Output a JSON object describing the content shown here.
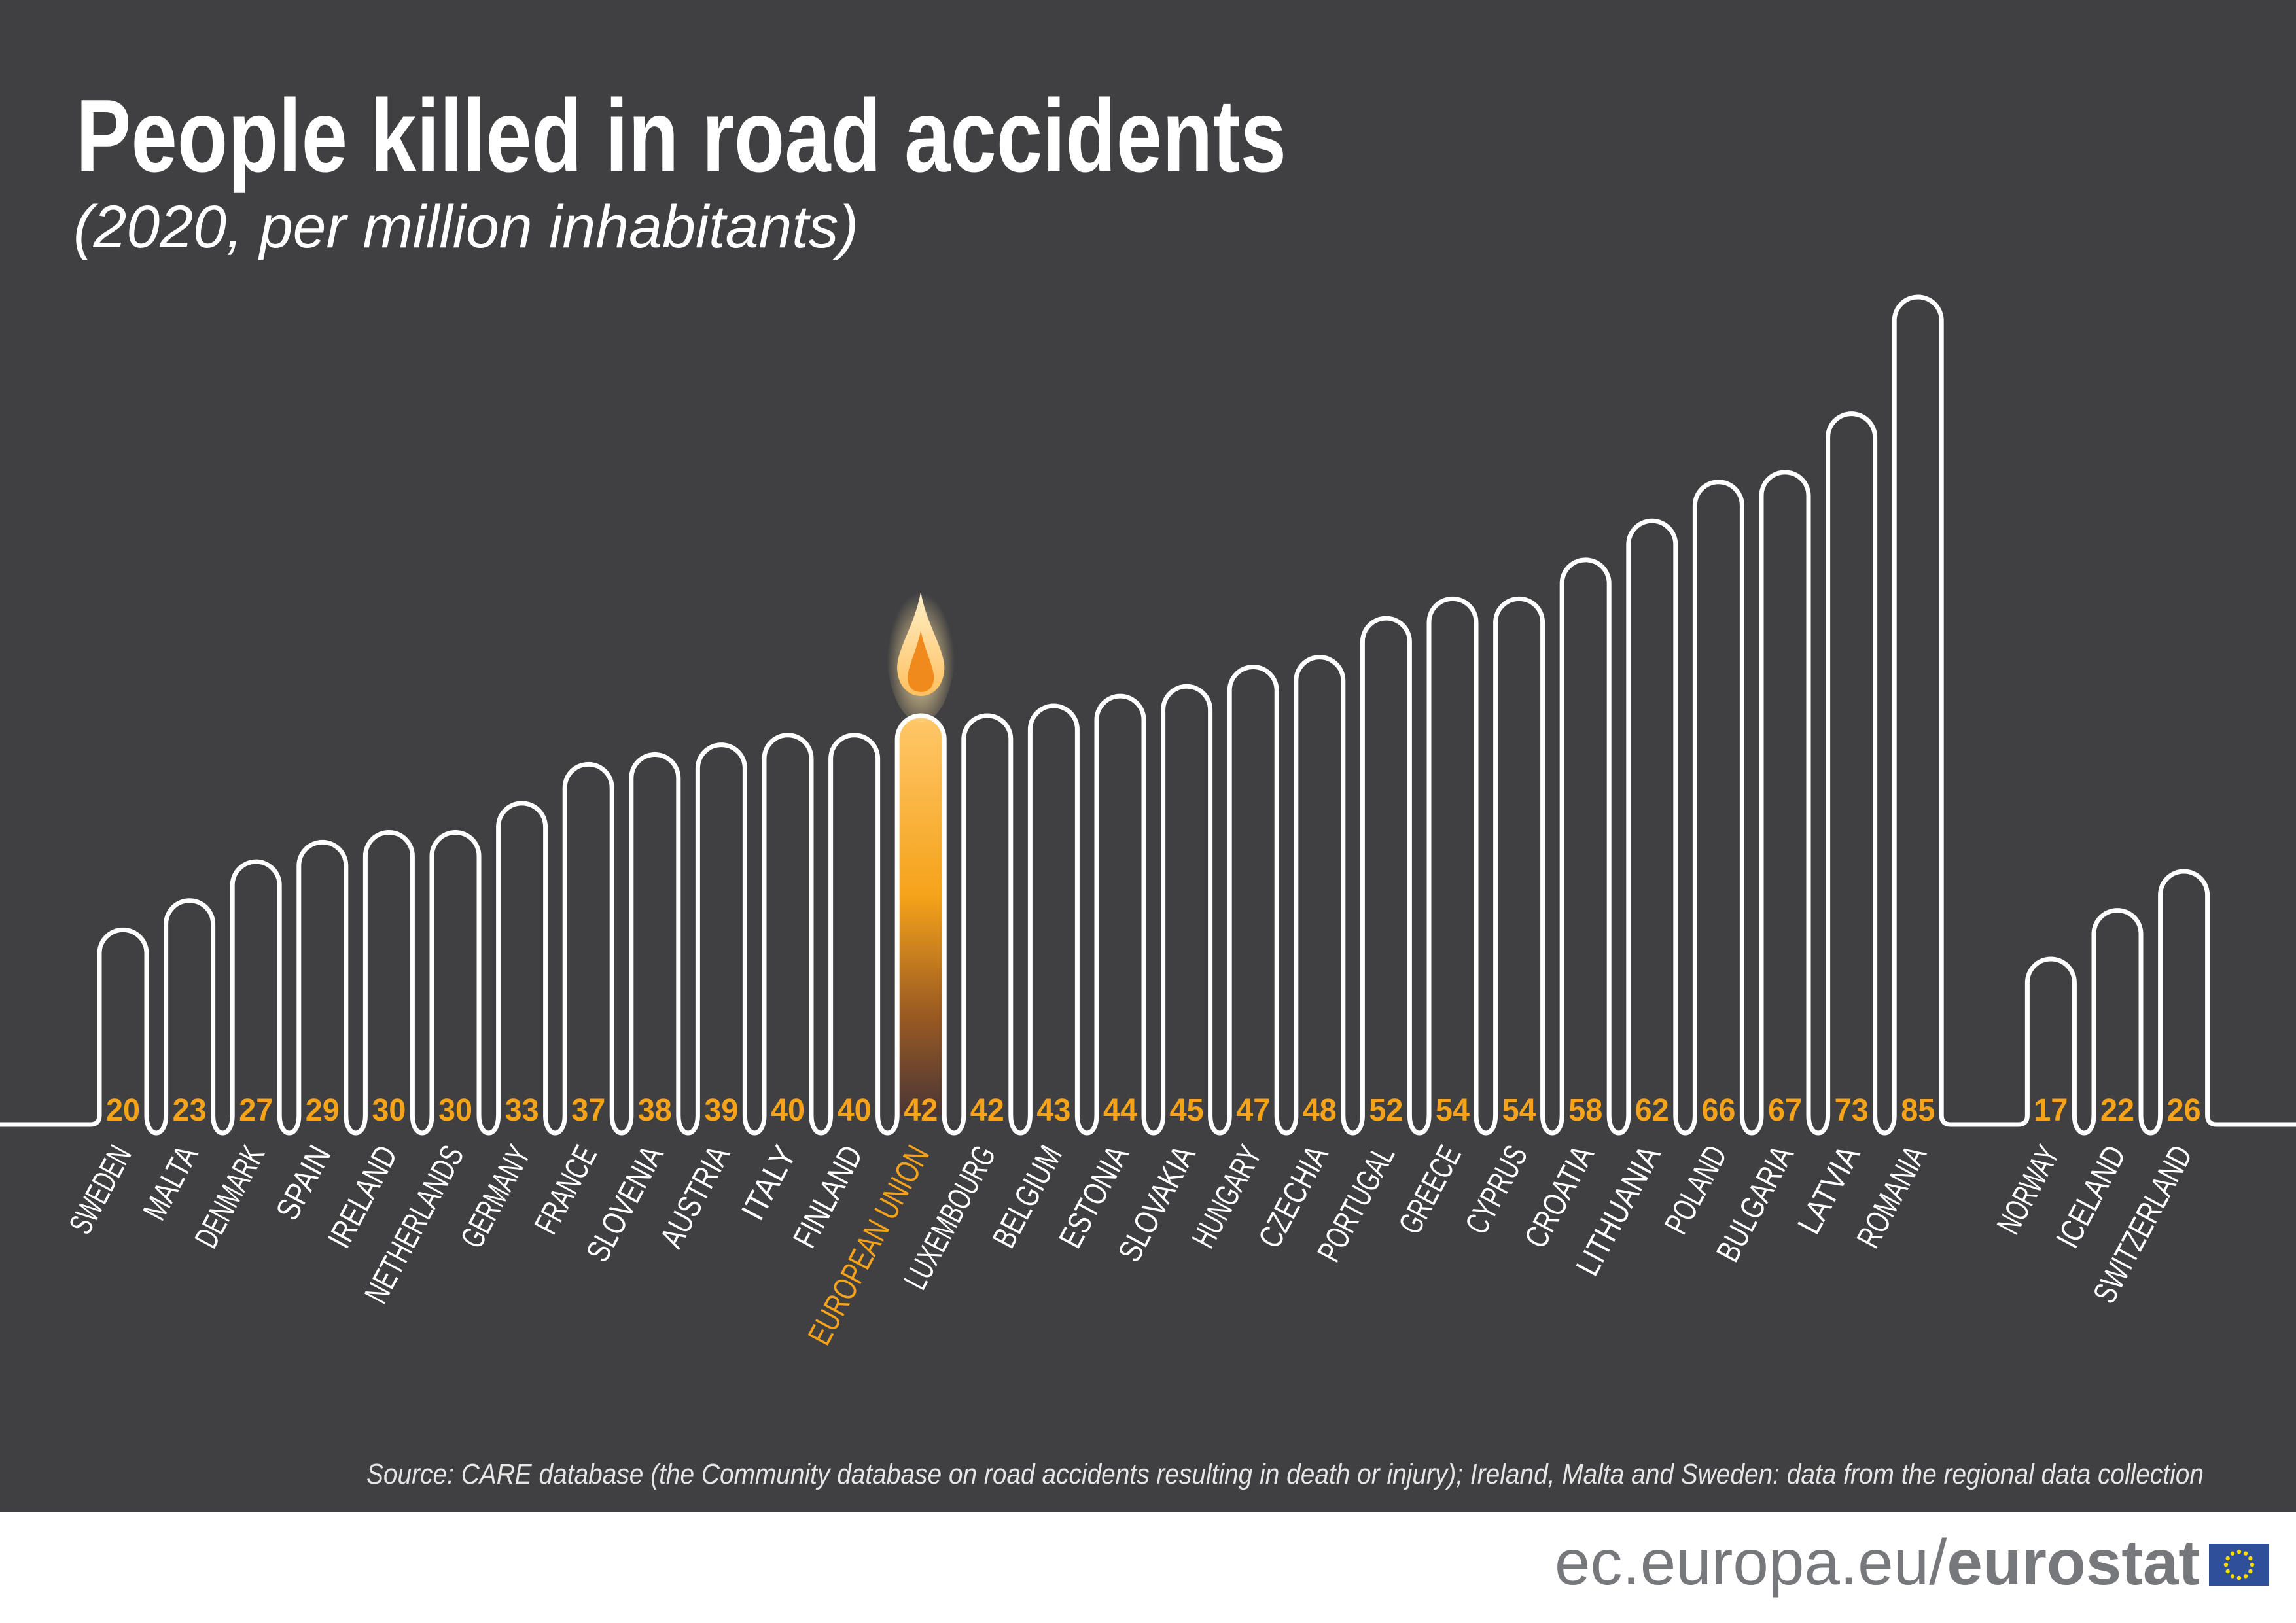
{
  "chart_data": {
    "type": "bar",
    "title": "People killed in road accidents",
    "subtitle": "(2020, per million inhabitants)",
    "xlabel": "",
    "ylabel": "",
    "ylim": [
      0,
      85
    ],
    "grid": false,
    "categories": [
      "SWEDEN",
      "MALTA",
      "DENMARK",
      "SPAIN",
      "IRELAND",
      "NETHERLANDS",
      "GERMANY",
      "FRANCE",
      "SLOVENIA",
      "AUSTRIA",
      "ITALY",
      "FINLAND",
      "EUROPEAN UNION",
      "LUXEMBOURG",
      "BELGIUM",
      "ESTONIA",
      "SLOVAKIA",
      "HUNGARY",
      "CZECHIA",
      "PORTUGAL",
      "GREECE",
      "CYPRUS",
      "CROATIA",
      "LITHUANIA",
      "POLAND",
      "BULGARIA",
      "LATVIA",
      "ROMANIA",
      "NORWAY",
      "ICELAND",
      "SWITZERLAND"
    ],
    "values": [
      20,
      23,
      27,
      29,
      30,
      30,
      33,
      37,
      38,
      39,
      40,
      40,
      42,
      42,
      43,
      44,
      45,
      47,
      48,
      52,
      54,
      54,
      58,
      62,
      66,
      67,
      73,
      85,
      17,
      22,
      26
    ],
    "highlight": "EUROPEAN UNION",
    "source": "Source: CARE database (the Community database on road accidents resulting in death or injury); Ireland, Malta and Sweden: data from the regional data collection"
  },
  "colors": {
    "background": "#404042",
    "bar_outline": "#ffffff",
    "value_label": "#f5a31a",
    "highlight": "#f5a31a",
    "footer_text": "#77787b",
    "eu_flag": "#2e509b",
    "eu_stars": "#ffdd00"
  },
  "footer": {
    "url_prefix": "ec.europa.eu/",
    "url_brand": "eurostat"
  }
}
